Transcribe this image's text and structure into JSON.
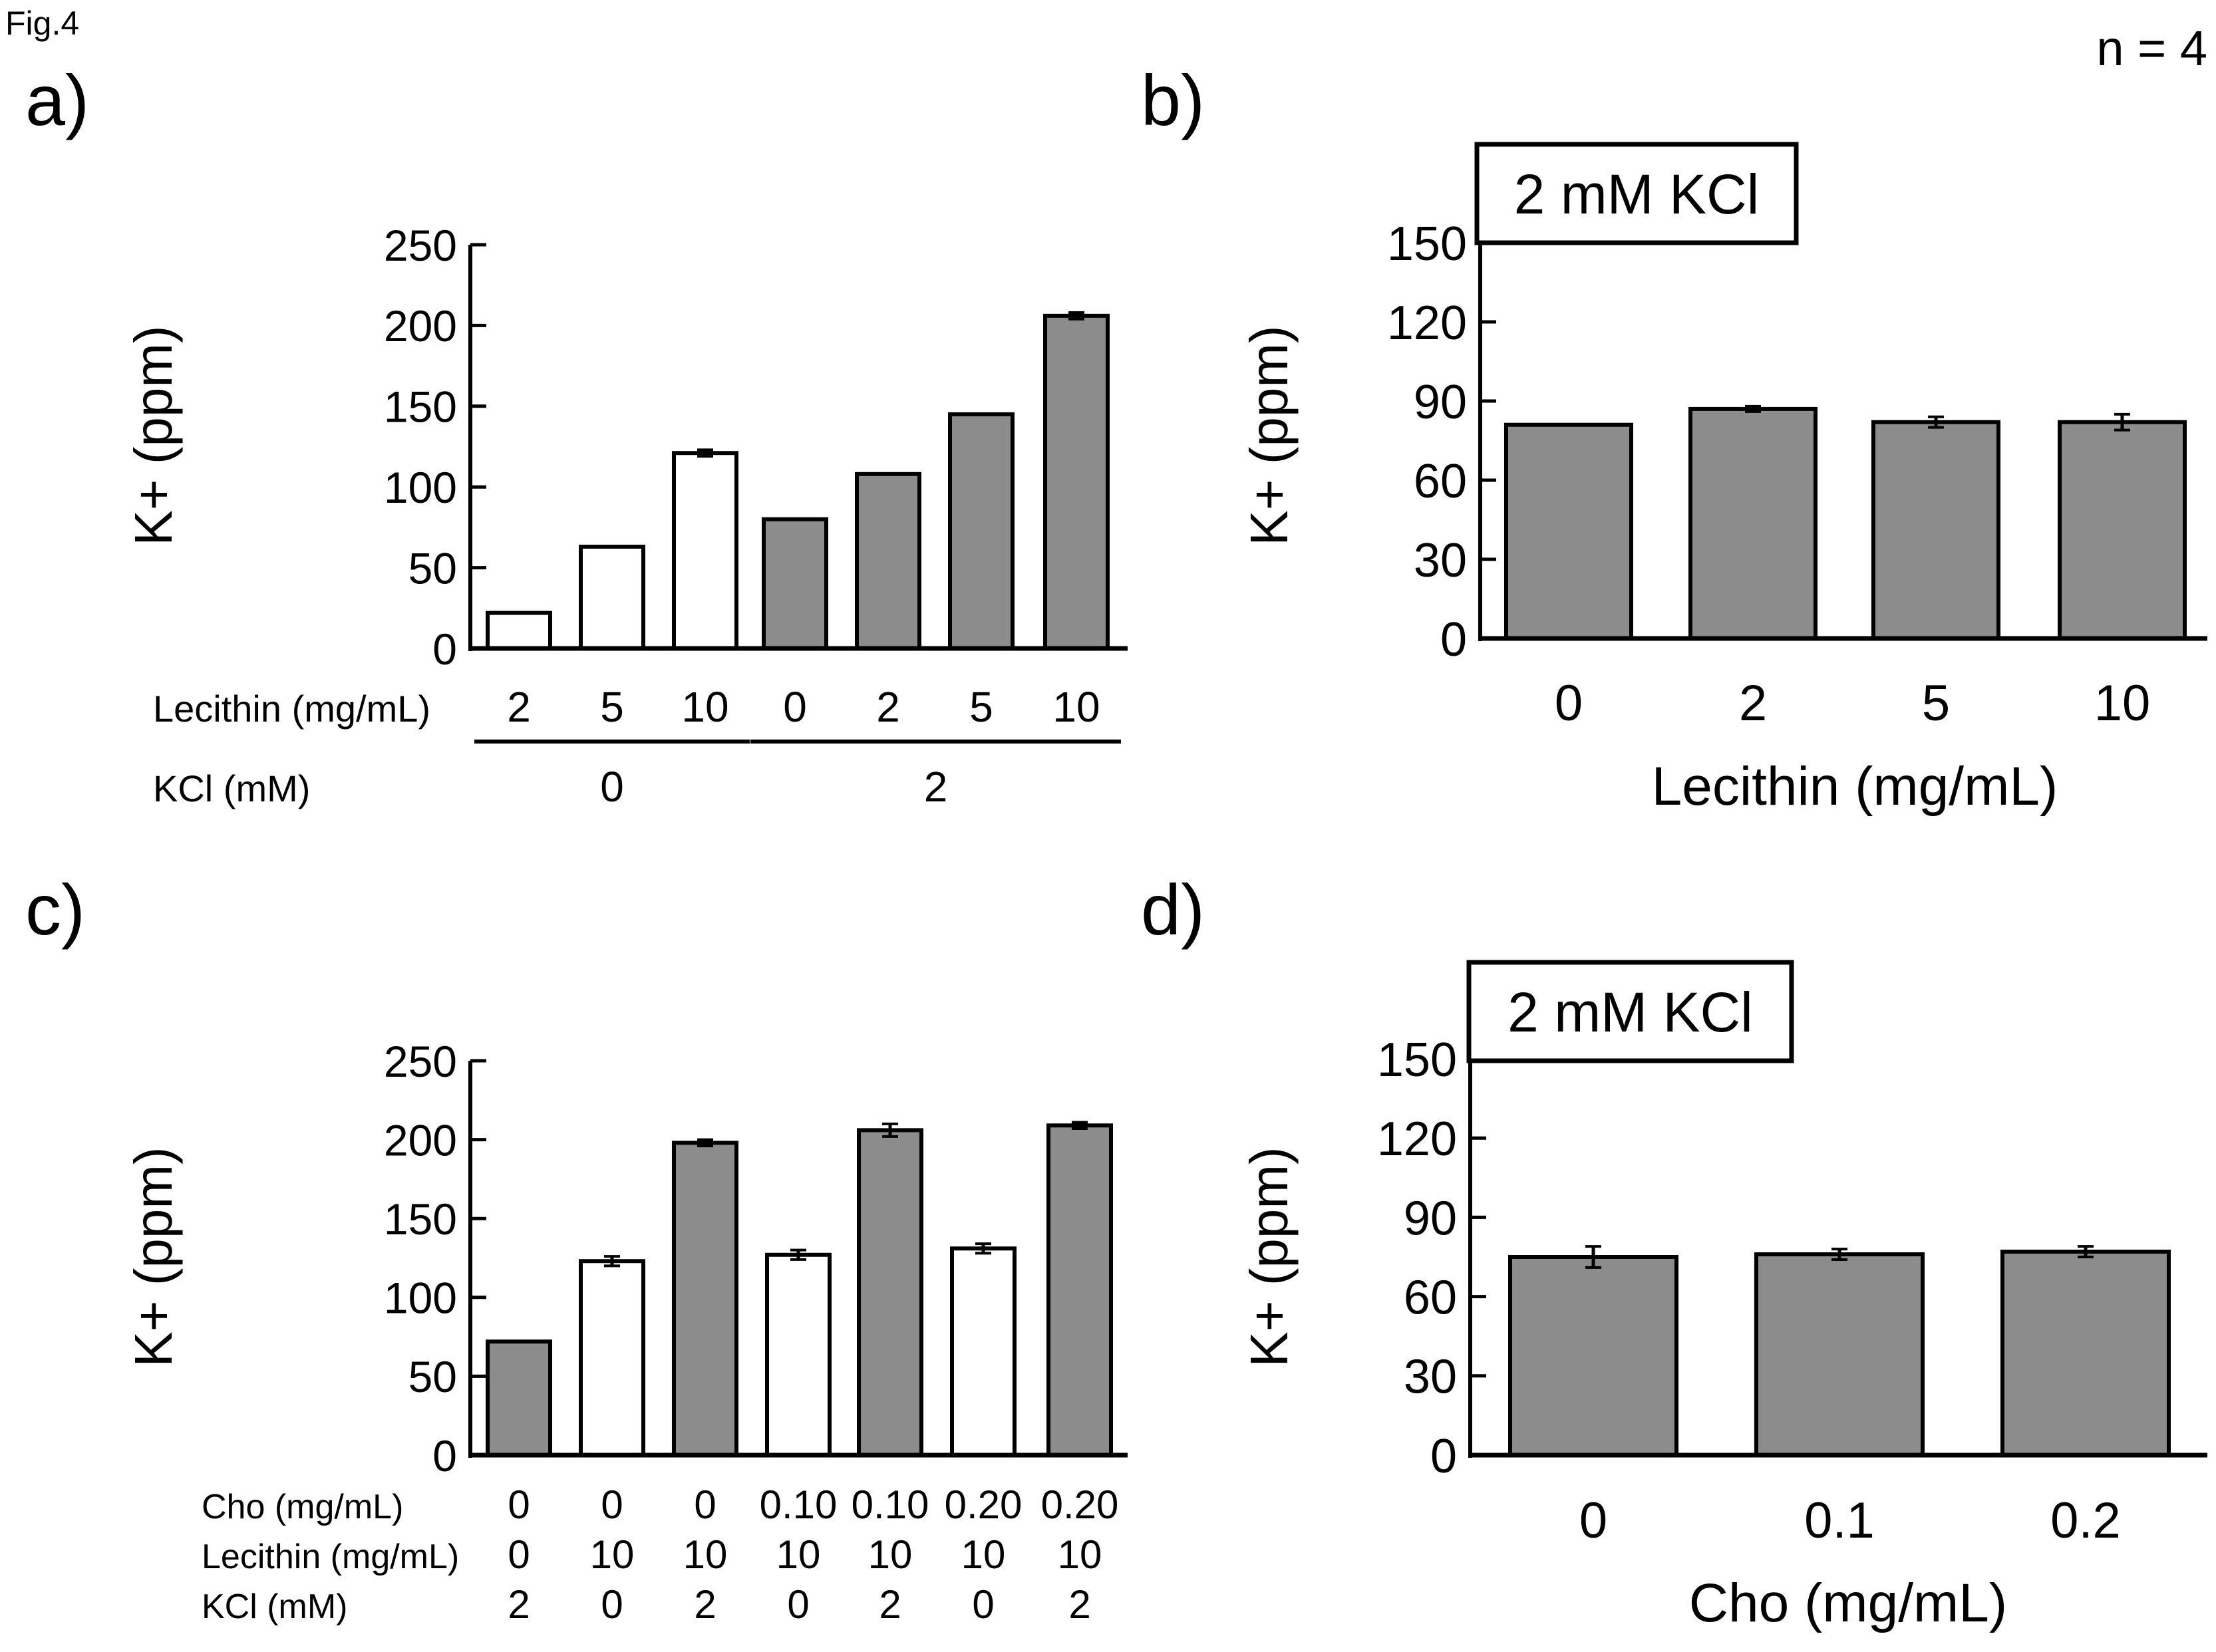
{
  "figure": {
    "label": "Fig.4",
    "n_label": "n = 4"
  },
  "chart_data": [
    {
      "panel": "a)",
      "type": "bar",
      "ylabel": "K+ (ppm)",
      "ylim": [
        0,
        250
      ],
      "yticks": [
        0,
        50,
        100,
        150,
        200,
        250
      ],
      "values": [
        22,
        63,
        121,
        80,
        108,
        145,
        206
      ],
      "errors": [
        0,
        0,
        2,
        0,
        0,
        0,
        2
      ],
      "fills": [
        "#ffffff",
        "#ffffff",
        "#ffffff",
        "#8c8c8c",
        "#8c8c8c",
        "#8c8c8c",
        "#8c8c8c"
      ],
      "category_rows": [
        {
          "label": "Lecithin (mg/mL)",
          "values": [
            "2",
            "5",
            "10",
            "0",
            "2",
            "5",
            "10"
          ]
        }
      ],
      "groups": {
        "label": "KCl (mM)",
        "items": [
          {
            "label": "0",
            "span": [
              0,
              2
            ]
          },
          {
            "label": "2",
            "span": [
              3,
              6
            ]
          }
        ]
      }
    },
    {
      "panel": "b)",
      "type": "bar",
      "title_box": "2 mM KCl",
      "ylabel": "K+ (ppm)",
      "xlabel": "Lecithin (mg/mL)",
      "ylim": [
        0,
        150
      ],
      "yticks": [
        0,
        30,
        60,
        90,
        120,
        150
      ],
      "categories": [
        "0",
        "2",
        "5",
        "10"
      ],
      "values": [
        81,
        87,
        82,
        82
      ],
      "errors": [
        0,
        1,
        2,
        3
      ],
      "fills": [
        "#8c8c8c",
        "#8c8c8c",
        "#8c8c8c",
        "#8c8c8c"
      ]
    },
    {
      "panel": "c)",
      "type": "bar",
      "ylabel": "K+ (ppm)",
      "ylim": [
        0,
        250
      ],
      "yticks": [
        0,
        50,
        100,
        150,
        200,
        250
      ],
      "values": [
        72,
        123,
        198,
        127,
        206,
        131,
        209
      ],
      "errors": [
        0,
        3,
        2,
        3,
        4,
        3,
        2
      ],
      "fills": [
        "#8c8c8c",
        "#ffffff",
        "#8c8c8c",
        "#ffffff",
        "#8c8c8c",
        "#ffffff",
        "#8c8c8c"
      ],
      "category_rows": [
        {
          "label": "Cho (mg/mL)",
          "values": [
            "0",
            "0",
            "0",
            "0.10",
            "0.10",
            "0.20",
            "0.20"
          ]
        },
        {
          "label": "Lecithin (mg/mL)",
          "values": [
            "0",
            "10",
            "10",
            "10",
            "10",
            "10",
            "10"
          ]
        },
        {
          "label": "KCl (mM)",
          "values": [
            "2",
            "0",
            "2",
            "0",
            "2",
            "0",
            "2"
          ]
        }
      ]
    },
    {
      "panel": "d)",
      "type": "bar",
      "title_box": "2 mM KCl",
      "ylabel": "K+ (ppm)",
      "xlabel": "Cho (mg/mL)",
      "ylim": [
        0,
        150
      ],
      "yticks": [
        0,
        30,
        60,
        90,
        120,
        150
      ],
      "categories": [
        "0",
        "0.1",
        "0.2"
      ],
      "values": [
        75,
        76,
        77
      ],
      "errors": [
        4,
        2,
        2
      ],
      "fills": [
        "#8c8c8c",
        "#8c8c8c",
        "#8c8c8c"
      ]
    }
  ]
}
